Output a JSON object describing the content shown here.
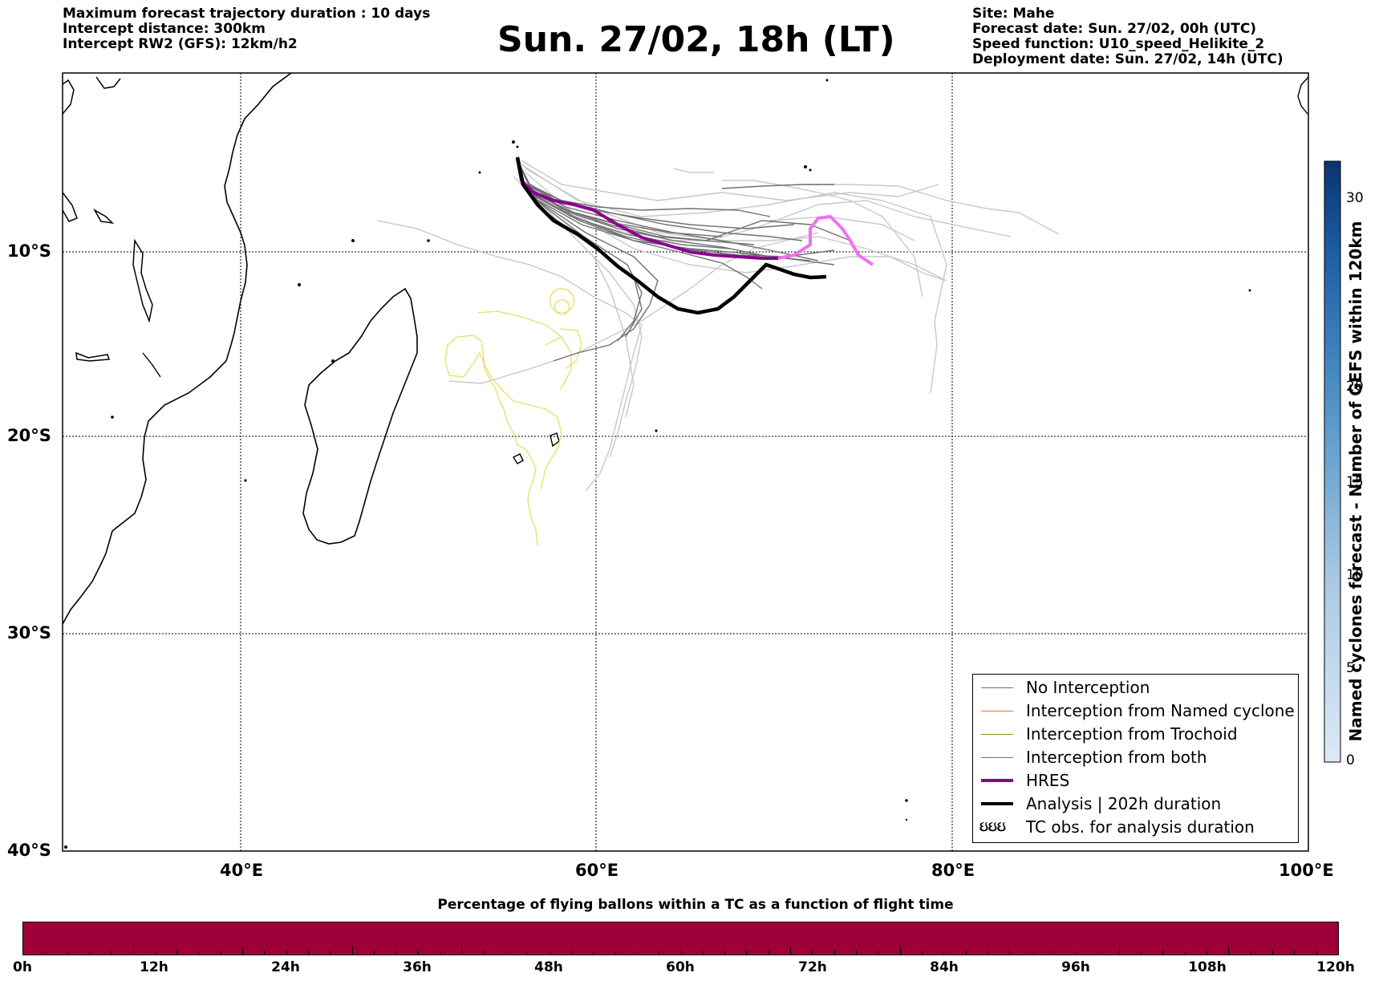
{
  "header": {
    "left_lines": [
      "Maximum forecast trajectory duration : 10 days",
      "Intercept distance: 300km",
      "Intercept RW2 (GFS):  12km/h2"
    ],
    "title": "Sun. 27/02, 18h (LT)",
    "right_lines": [
      "Site: Mahe",
      "Forecast date: Sun. 27/02, 00h (UTC)",
      "Speed function: U10_speed_Helikite_2",
      "Deployment date: Sun. 27/02, 14h (UTC)"
    ]
  },
  "map": {
    "lat_labels": [
      "10°S",
      "20°S",
      "30°S",
      "40°S"
    ],
    "lon_labels": [
      "40°E",
      "60°E",
      "80°E",
      "100°E"
    ],
    "colors": {
      "no_interception": "#707070",
      "no_interception_light": "#c8c8c8",
      "named_cyclone": "#ff6a2a",
      "trochoid": "#8a8a20",
      "both": "#2aa02a",
      "hres": "#8a0090",
      "hres_tail": "#f070f0",
      "analysis": "#000000",
      "tc_obs": "#e8e070"
    }
  },
  "legend": {
    "items": [
      {
        "label": "No Interception",
        "icon": "thin-line",
        "color": "#707070"
      },
      {
        "label": "Interception from Named cyclone",
        "icon": "thin-line",
        "color": "#ff6a2a"
      },
      {
        "label": "Interception from Trochoid",
        "icon": "thin-line",
        "color": "#8a8a20"
      },
      {
        "label": "Interception from both",
        "icon": "thin-line",
        "color": "#2aa02a"
      },
      {
        "label": "HRES",
        "icon": "thick-line",
        "color": "#8a0090"
      },
      {
        "label": "Analysis | 202h duration",
        "icon": "thick-line",
        "color": "#000000"
      },
      {
        "label": "TC obs. for analysis duration",
        "icon": "cyclone-symbols",
        "symbol_text": "ઇઇઇ"
      }
    ]
  },
  "colorbar": {
    "label": "Named cyclones forecast - Number of GEFS within 120km",
    "ticks": [
      "0",
      "5",
      "10",
      "15",
      "20",
      "30"
    ],
    "max": 33
  },
  "time_bar": {
    "title": "Percentage of flying ballons within a TC as a function of flight time",
    "tick_labels": [
      "0h",
      "12h",
      "24h",
      "36h",
      "48h",
      "60h",
      "72h",
      "84h",
      "96h",
      "108h",
      "120h"
    ],
    "color": "#9e003a"
  }
}
